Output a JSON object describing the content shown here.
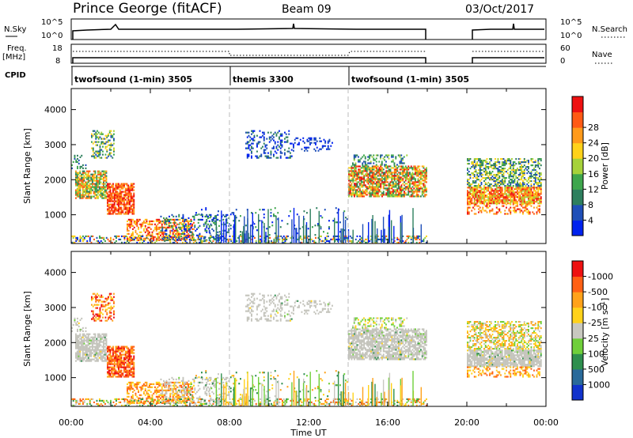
{
  "header": {
    "station": "Prince George (fitACF)",
    "beam": "Beam 09",
    "date": "03/Oct/2017"
  },
  "top_panels": {
    "nsky_label": "N.Sky",
    "nsky_ticks": [
      "10^5",
      "10^0"
    ],
    "nsearch_label": "N.Search",
    "nsearch_ticks": [
      "10^5",
      "10^0"
    ],
    "freq_label": "Freq.",
    "freq_unit": "[MHz]",
    "freq_ticks": [
      "18",
      "8"
    ],
    "nave_label": "Nave",
    "nave_ticks": [
      "60",
      "0"
    ],
    "cpid_label": "CPID"
  },
  "cpid_segments": [
    {
      "label": "twofsound (1-min) 3505",
      "start_hour": 0,
      "end_hour": 8
    },
    {
      "label": "themis 3300",
      "start_hour": 8,
      "end_hour": 14
    },
    {
      "label": "twofsound (1-min) 3505",
      "start_hour": 14,
      "end_hour": 18
    }
  ],
  "chart_data": {
    "type": "heatmap",
    "xlabel": "Time UT",
    "x_tick_labels": [
      "00:00",
      "04:00",
      "08:00",
      "12:00",
      "16:00",
      "20:00",
      "00:00"
    ],
    "xlim": [
      0,
      24
    ],
    "data_gap_hours": [
      18,
      20
    ],
    "panels": [
      {
        "name": "power",
        "ylabel": "Slant Range [km]",
        "ylim": [
          180,
          4600
        ],
        "y_tick_labels": [
          "1000",
          "2000",
          "3000",
          "4000"
        ],
        "colorbar_label": "Power [dB]",
        "colorbar_ticks": [
          "4",
          "8",
          "12",
          "16",
          "20",
          "24",
          "28"
        ],
        "colors": [
          "#0022ee",
          "#1f4fb8",
          "#2e7f5e",
          "#3ea64c",
          "#a6d23a",
          "#ffd21a",
          "#ff9a1a",
          "#ff5a14",
          "#ee1111"
        ]
      },
      {
        "name": "velocity",
        "ylabel": "Slant Range [km]",
        "ylim": [
          180,
          4600
        ],
        "y_tick_labels": [
          "1000",
          "2000",
          "3000",
          "4000"
        ],
        "colorbar_label": "Velocity [m s-1]",
        "colorbar_ticks": [
          "1000",
          "500",
          "100",
          "25",
          "-25",
          "-100",
          "-500",
          "-1000"
        ],
        "colors": [
          "#1133cc",
          "#2a6a9a",
          "#2e8f4e",
          "#6fcf3a",
          "#c8c8c0",
          "#ffd21a",
          "#ffa21a",
          "#ff6014",
          "#ee1111"
        ],
        "ground_scatter_color": "#c4c4bc"
      }
    ]
  }
}
